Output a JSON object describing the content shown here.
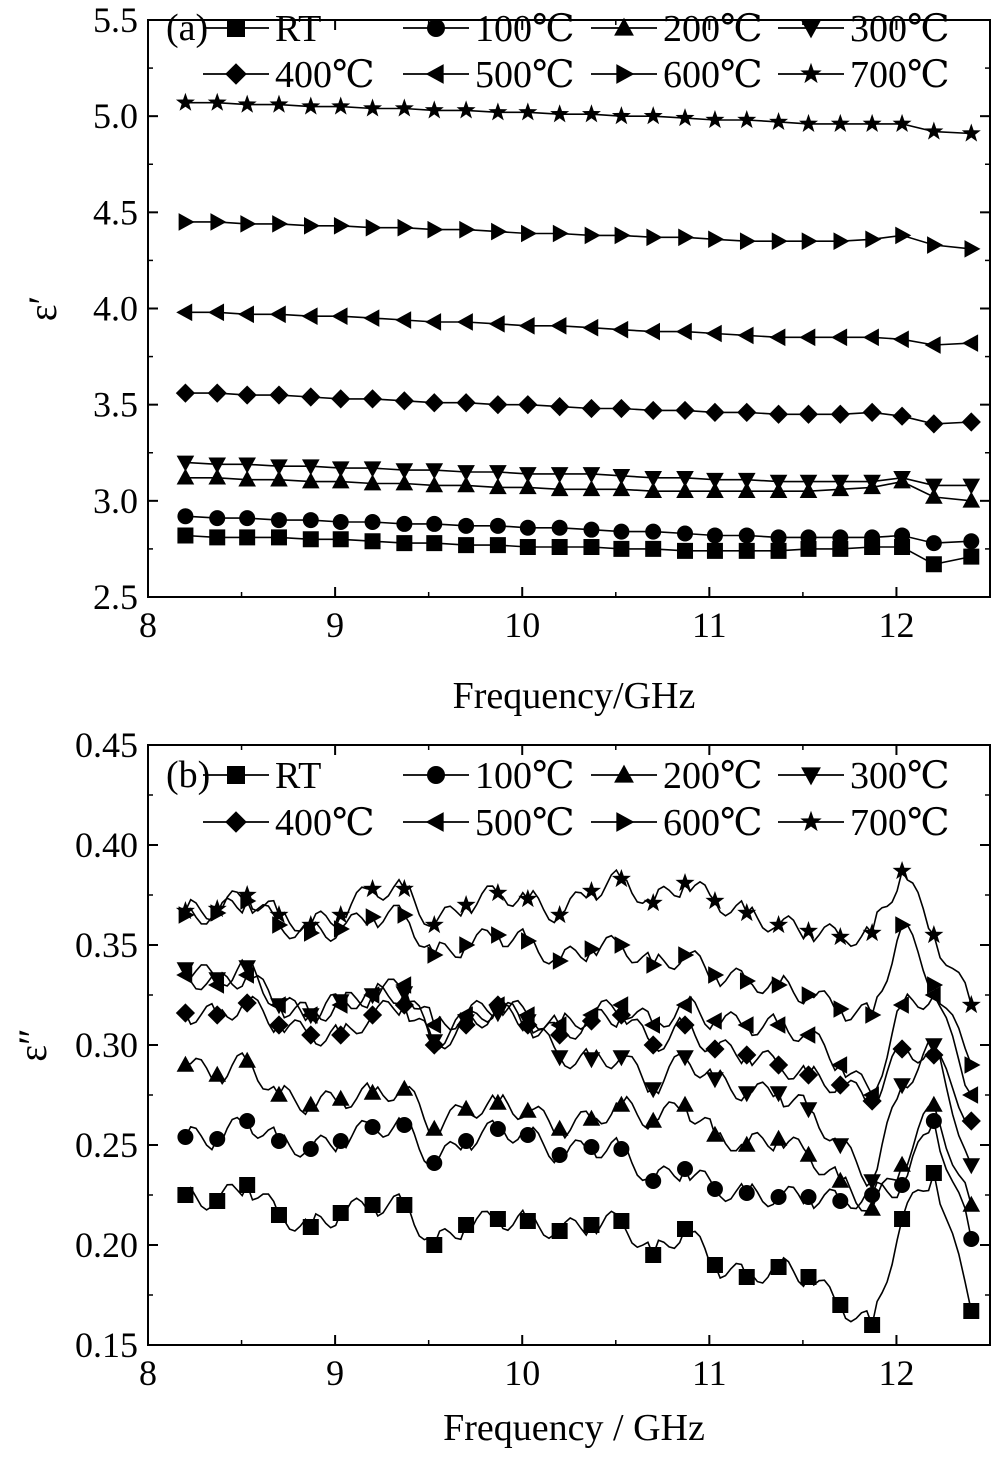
{
  "chart_data": [
    {
      "panel_label": "(a)",
      "type": "line",
      "xlabel": "Frequency/GHz",
      "ylabel": "ε′",
      "xlim": [
        8,
        12.5
      ],
      "ylim": [
        2.5,
        5.5
      ],
      "xticks": [
        "8",
        "9",
        "10",
        "11",
        "12"
      ],
      "yticks": [
        "2.5",
        "3.0",
        "3.5",
        "4.0",
        "4.5",
        "5.0",
        "5.5"
      ],
      "grid": false,
      "legend_position": "top, two rows inside plot",
      "x": [
        8.2,
        8.37,
        8.53,
        8.7,
        8.87,
        9.03,
        9.2,
        9.37,
        9.53,
        9.7,
        9.87,
        10.03,
        10.2,
        10.37,
        10.53,
        10.7,
        10.87,
        11.03,
        11.2,
        11.37,
        11.53,
        11.7,
        11.87,
        12.03,
        12.2,
        12.4
      ],
      "series": [
        {
          "name": "RT",
          "marker": "square",
          "values": [
            2.82,
            2.81,
            2.81,
            2.81,
            2.8,
            2.8,
            2.79,
            2.78,
            2.78,
            2.77,
            2.77,
            2.76,
            2.76,
            2.76,
            2.75,
            2.75,
            2.74,
            2.74,
            2.74,
            2.74,
            2.75,
            2.75,
            2.76,
            2.76,
            2.67,
            2.71
          ]
        },
        {
          "name": "100℃",
          "marker": "circle",
          "values": [
            2.92,
            2.91,
            2.91,
            2.9,
            2.9,
            2.89,
            2.89,
            2.88,
            2.88,
            2.87,
            2.87,
            2.86,
            2.86,
            2.85,
            2.84,
            2.84,
            2.83,
            2.82,
            2.82,
            2.81,
            2.81,
            2.81,
            2.81,
            2.82,
            2.78,
            2.79
          ]
        },
        {
          "name": "200℃",
          "marker": "triangle-up",
          "values": [
            3.12,
            3.12,
            3.11,
            3.11,
            3.1,
            3.1,
            3.09,
            3.09,
            3.08,
            3.08,
            3.07,
            3.07,
            3.06,
            3.06,
            3.06,
            3.05,
            3.05,
            3.05,
            3.05,
            3.05,
            3.05,
            3.06,
            3.07,
            3.1,
            3.02,
            3.0
          ]
        },
        {
          "name": "300℃",
          "marker": "triangle-down",
          "values": [
            3.2,
            3.19,
            3.19,
            3.18,
            3.18,
            3.17,
            3.17,
            3.16,
            3.16,
            3.15,
            3.15,
            3.14,
            3.14,
            3.14,
            3.13,
            3.12,
            3.12,
            3.11,
            3.11,
            3.1,
            3.1,
            3.1,
            3.1,
            3.12,
            3.08,
            3.08
          ]
        },
        {
          "name": "400℃",
          "marker": "diamond",
          "values": [
            3.56,
            3.56,
            3.55,
            3.55,
            3.54,
            3.53,
            3.53,
            3.52,
            3.51,
            3.51,
            3.5,
            3.5,
            3.49,
            3.48,
            3.48,
            3.47,
            3.47,
            3.46,
            3.46,
            3.45,
            3.45,
            3.45,
            3.46,
            3.44,
            3.4,
            3.41
          ]
        },
        {
          "name": "500℃",
          "marker": "triangle-left",
          "values": [
            3.98,
            3.98,
            3.97,
            3.97,
            3.96,
            3.96,
            3.95,
            3.94,
            3.93,
            3.93,
            3.92,
            3.91,
            3.91,
            3.9,
            3.89,
            3.88,
            3.88,
            3.87,
            3.86,
            3.85,
            3.85,
            3.85,
            3.85,
            3.84,
            3.81,
            3.82
          ]
        },
        {
          "name": "600℃",
          "marker": "triangle-right",
          "values": [
            4.45,
            4.45,
            4.44,
            4.44,
            4.43,
            4.43,
            4.42,
            4.42,
            4.41,
            4.41,
            4.4,
            4.39,
            4.39,
            4.38,
            4.38,
            4.37,
            4.37,
            4.36,
            4.35,
            4.35,
            4.35,
            4.35,
            4.36,
            4.38,
            4.33,
            4.31
          ]
        },
        {
          "name": "700℃",
          "marker": "star",
          "values": [
            5.07,
            5.07,
            5.06,
            5.06,
            5.05,
            5.05,
            5.04,
            5.04,
            5.03,
            5.03,
            5.02,
            5.02,
            5.01,
            5.01,
            5.0,
            5.0,
            4.99,
            4.98,
            4.98,
            4.97,
            4.96,
            4.96,
            4.96,
            4.96,
            4.92,
            4.91
          ]
        }
      ]
    },
    {
      "panel_label": "(b)",
      "type": "line",
      "xlabel": "Frequency / GHz",
      "ylabel": "ε″",
      "xlim": [
        8,
        12.5
      ],
      "ylim": [
        0.15,
        0.45
      ],
      "xticks": [
        "8",
        "9",
        "10",
        "11",
        "12"
      ],
      "yticks": [
        "0.15",
        "0.20",
        "0.25",
        "0.30",
        "0.35",
        "0.40",
        "0.45"
      ],
      "grid": false,
      "legend_position": "top, two rows inside plot",
      "x": [
        8.2,
        8.37,
        8.53,
        8.7,
        8.87,
        9.03,
        9.2,
        9.37,
        9.53,
        9.7,
        9.87,
        10.03,
        10.2,
        10.37,
        10.53,
        10.7,
        10.87,
        11.03,
        11.2,
        11.37,
        11.53,
        11.7,
        11.87,
        12.03,
        12.2,
        12.4
      ],
      "series": [
        {
          "name": "RT",
          "marker": "square",
          "values": [
            0.225,
            0.222,
            0.23,
            0.215,
            0.209,
            0.216,
            0.22,
            0.22,
            0.2,
            0.21,
            0.213,
            0.212,
            0.207,
            0.21,
            0.212,
            0.195,
            0.208,
            0.19,
            0.184,
            0.189,
            0.184,
            0.17,
            0.16,
            0.213,
            0.236,
            0.167
          ]
        },
        {
          "name": "100℃",
          "marker": "circle",
          "values": [
            0.254,
            0.253,
            0.262,
            0.252,
            0.248,
            0.252,
            0.259,
            0.26,
            0.241,
            0.252,
            0.258,
            0.255,
            0.245,
            0.249,
            0.248,
            0.232,
            0.238,
            0.228,
            0.226,
            0.224,
            0.224,
            0.222,
            0.225,
            0.23,
            0.262,
            0.203
          ]
        },
        {
          "name": "200℃",
          "marker": "triangle-up",
          "values": [
            0.29,
            0.285,
            0.292,
            0.275,
            0.27,
            0.273,
            0.276,
            0.278,
            0.258,
            0.268,
            0.271,
            0.267,
            0.258,
            0.263,
            0.27,
            0.262,
            0.27,
            0.255,
            0.25,
            0.253,
            0.245,
            0.232,
            0.218,
            0.24,
            0.27,
            0.22
          ]
        },
        {
          "name": "300℃",
          "marker": "triangle-down",
          "values": [
            0.338,
            0.333,
            0.339,
            0.32,
            0.315,
            0.322,
            0.325,
            0.326,
            0.302,
            0.312,
            0.316,
            0.312,
            0.294,
            0.293,
            0.294,
            0.278,
            0.294,
            0.283,
            0.276,
            0.276,
            0.268,
            0.25,
            0.232,
            0.28,
            0.3,
            0.24
          ]
        },
        {
          "name": "400℃",
          "marker": "diamond",
          "values": [
            0.316,
            0.315,
            0.321,
            0.31,
            0.305,
            0.305,
            0.315,
            0.32,
            0.3,
            0.31,
            0.32,
            0.31,
            0.305,
            0.312,
            0.315,
            0.3,
            0.31,
            0.298,
            0.295,
            0.29,
            0.285,
            0.28,
            0.272,
            0.298,
            0.295,
            0.262
          ]
        },
        {
          "name": "500℃",
          "marker": "triangle-left",
          "values": [
            0.335,
            0.33,
            0.335,
            0.32,
            0.315,
            0.32,
            0.325,
            0.33,
            0.31,
            0.315,
            0.32,
            0.315,
            0.31,
            0.315,
            0.32,
            0.31,
            0.32,
            0.312,
            0.31,
            0.31,
            0.305,
            0.29,
            0.275,
            0.32,
            0.325,
            0.275
          ]
        },
        {
          "name": "600℃",
          "marker": "triangle-right",
          "values": [
            0.365,
            0.366,
            0.372,
            0.36,
            0.356,
            0.358,
            0.364,
            0.365,
            0.345,
            0.35,
            0.355,
            0.352,
            0.342,
            0.348,
            0.35,
            0.34,
            0.345,
            0.335,
            0.332,
            0.33,
            0.325,
            0.318,
            0.315,
            0.36,
            0.33,
            0.29
          ]
        },
        {
          "name": "700℃",
          "marker": "star",
          "values": [
            0.367,
            0.368,
            0.375,
            0.365,
            0.36,
            0.365,
            0.378,
            0.378,
            0.36,
            0.37,
            0.376,
            0.373,
            0.365,
            0.377,
            0.383,
            0.371,
            0.381,
            0.372,
            0.366,
            0.36,
            0.357,
            0.354,
            0.356,
            0.387,
            0.355,
            0.32
          ]
        }
      ]
    }
  ]
}
